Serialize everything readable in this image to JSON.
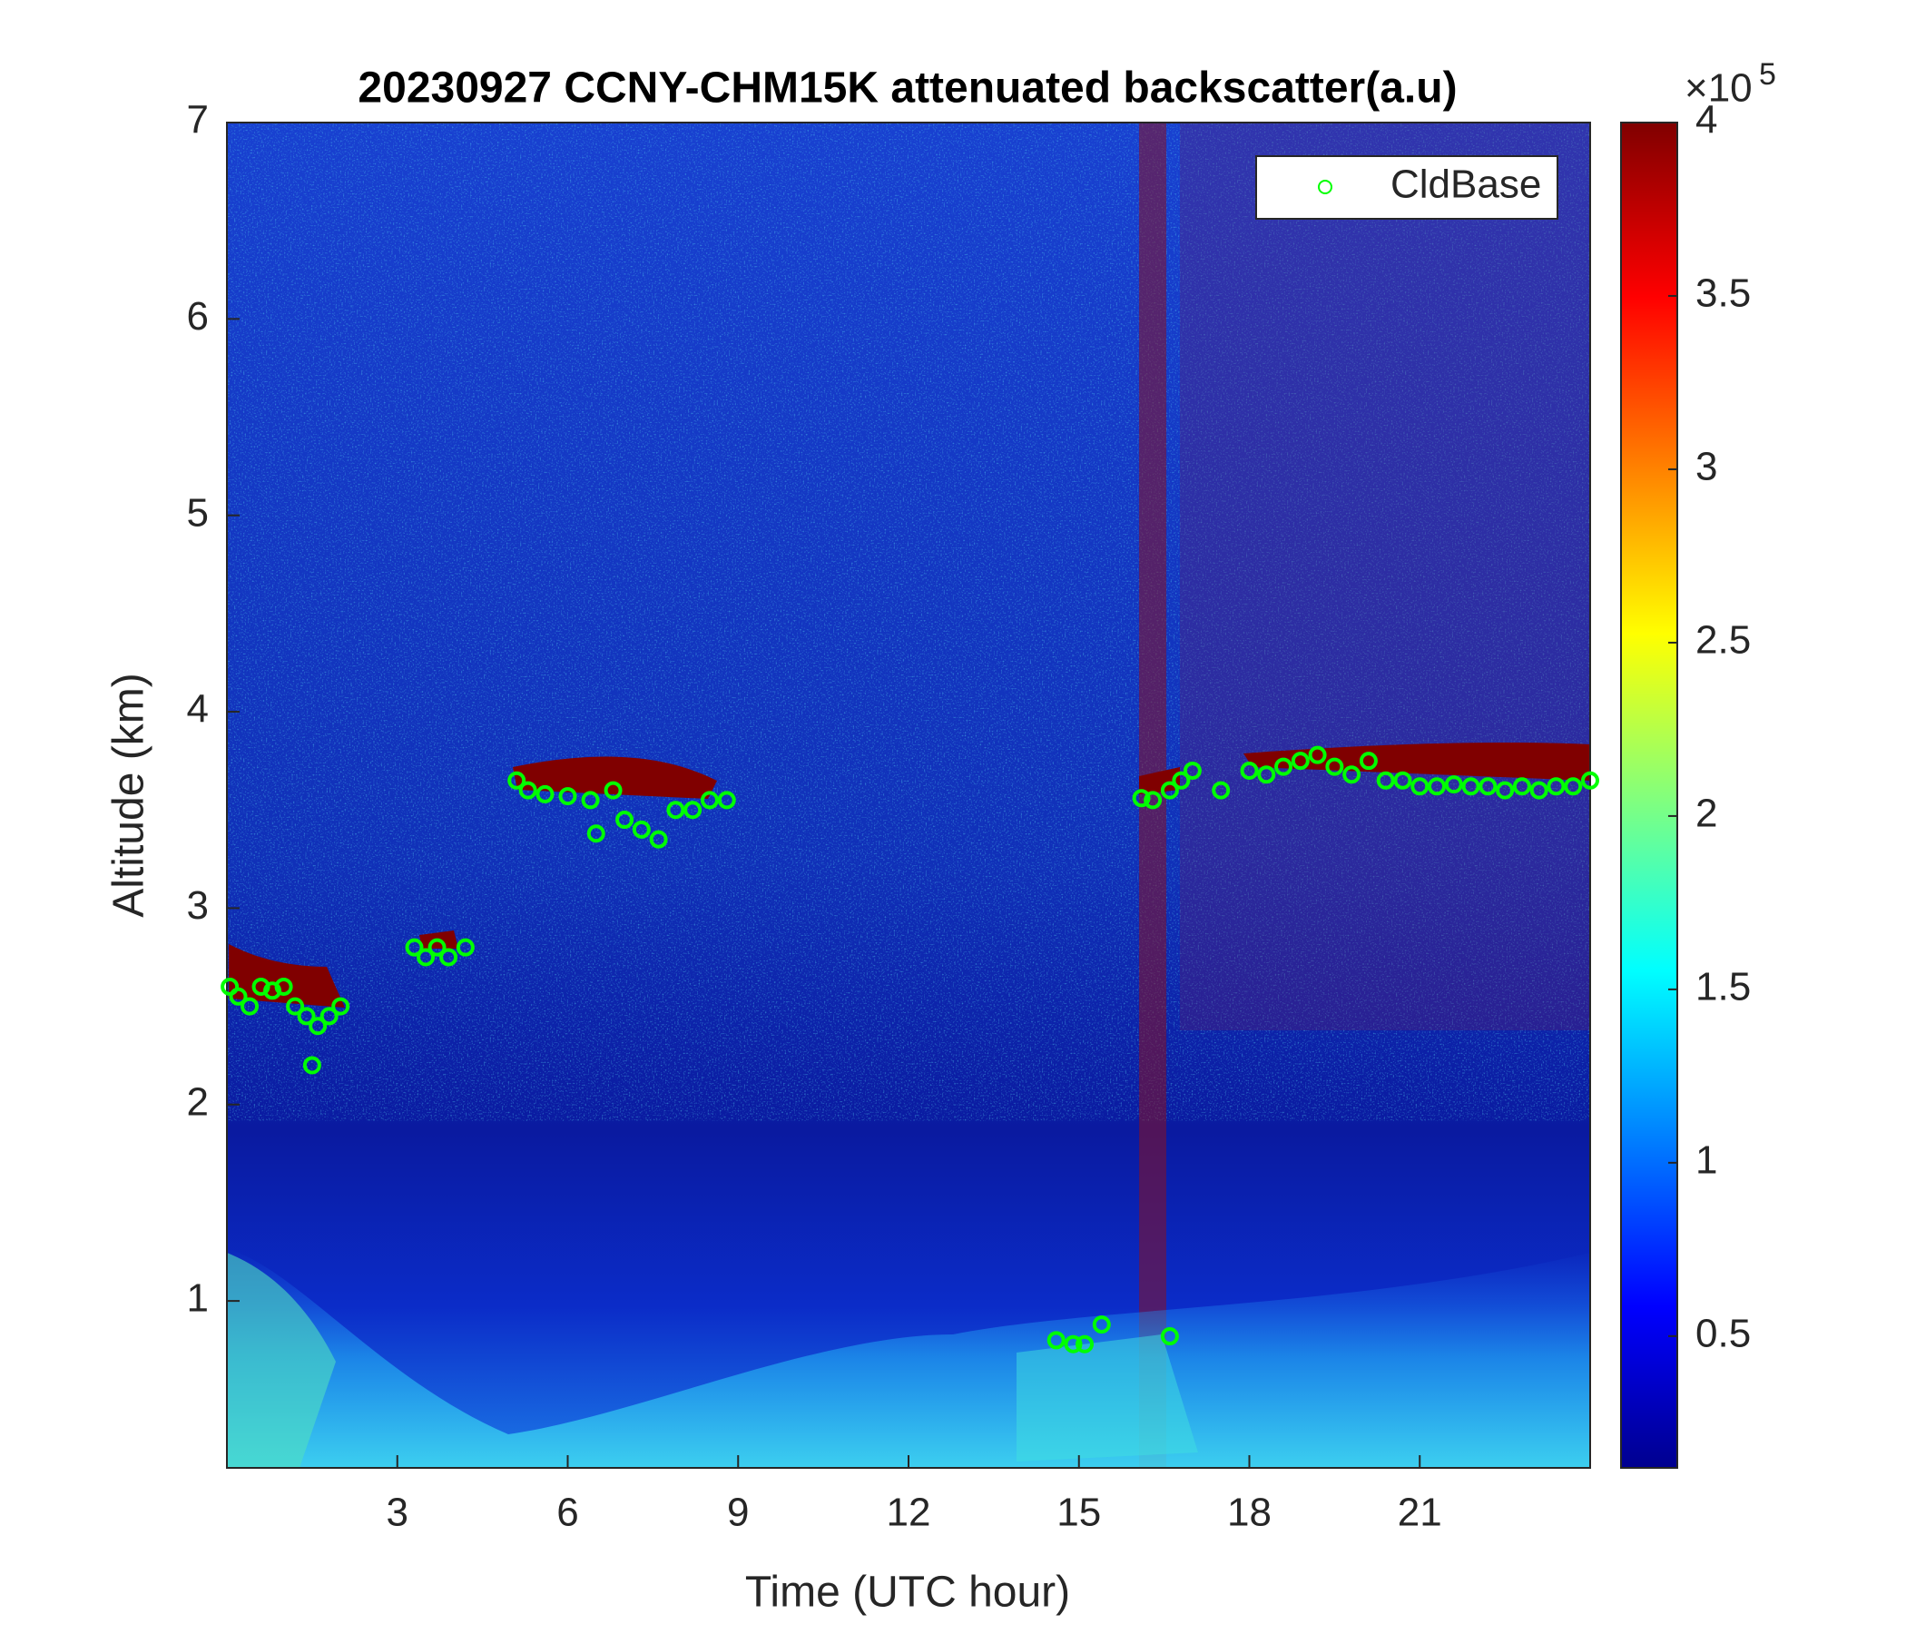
{
  "chart_data": {
    "type": "scatter",
    "title": "20230927 CCNY-CHM15K attenuated backscatter(a.u)",
    "xlabel": "Time (UTC hour)",
    "ylabel": "Altitude (km)",
    "xlim": [
      0,
      24
    ],
    "xticks": [
      3,
      6,
      9,
      12,
      15,
      18,
      21
    ],
    "ylim": [
      0.15,
      7
    ],
    "yticks": [
      1,
      2,
      3,
      4,
      5,
      6,
      7
    ],
    "grid": false,
    "legend": "upper right",
    "colorbar": {
      "clim": [
        0.12,
        4
      ],
      "ticks": [
        0.5,
        1,
        1.5,
        2,
        2.5,
        3,
        3.5,
        4
      ],
      "multiplier": "×10",
      "exponent": "5",
      "colormap": "jet"
    },
    "series": [
      {
        "name": "CldBase",
        "color": "#00ff00",
        "marker": "circle",
        "x": [
          0.05,
          0.2,
          0.4,
          0.6,
          0.8,
          1.0,
          1.2,
          1.4,
          1.5,
          1.6,
          1.8,
          2.0,
          3.3,
          3.5,
          3.7,
          3.9,
          4.2,
          5.1,
          5.3,
          5.6,
          6.0,
          6.4,
          6.5,
          6.8,
          7.0,
          7.3,
          7.6,
          7.9,
          8.2,
          8.5,
          8.8,
          14.6,
          14.9,
          15.1,
          15.4,
          16.1,
          16.3,
          16.6,
          16.8,
          17.0,
          17.5,
          16.6,
          18.0,
          18.3,
          18.6,
          18.9,
          19.2,
          19.5,
          19.8,
          20.1,
          20.4,
          20.7,
          21.0,
          21.3,
          21.6,
          21.9,
          22.2,
          22.5,
          22.8,
          23.1,
          23.4,
          23.7,
          24.0
        ],
        "values": [
          2.6,
          2.55,
          2.5,
          2.6,
          2.58,
          2.6,
          2.5,
          2.45,
          2.2,
          2.4,
          2.45,
          2.5,
          2.8,
          2.75,
          2.8,
          2.75,
          2.8,
          3.65,
          3.6,
          3.58,
          3.57,
          3.55,
          3.38,
          3.6,
          3.45,
          3.4,
          3.35,
          3.5,
          3.5,
          3.55,
          3.55,
          0.8,
          0.78,
          0.78,
          0.88,
          3.56,
          3.55,
          3.6,
          3.65,
          3.7,
          3.6,
          0.82,
          3.7,
          3.68,
          3.72,
          3.75,
          3.78,
          3.72,
          3.68,
          3.75,
          3.65,
          3.65,
          3.62,
          3.62,
          3.63,
          3.62,
          3.62,
          3.6,
          3.62,
          3.6,
          3.62,
          3.62,
          3.65
        ]
      }
    ]
  }
}
